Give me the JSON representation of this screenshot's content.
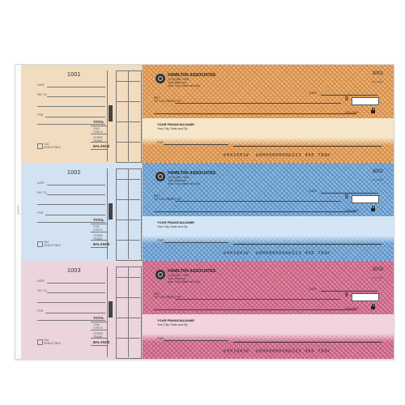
{
  "sheet": {
    "left_margin_code": "24H57"
  },
  "checks": [
    {
      "number": "1001",
      "colors": {
        "stub": "#f2dcbf",
        "pattern_a": "#eab27a",
        "pattern_b": "#d68c45",
        "band": "#f6e6c9"
      },
      "company": "HAMILTON ASSOCIATES",
      "company_lines": [
        "(123) 456-7890",
        "Your Address",
        "Your City, State and Zip"
      ],
      "fraction": "000-00000",
      "stub_labels": {
        "date": "DATE",
        "pay_to": "PAY TO",
        "for": "FOR",
        "total": "TOTAL",
        "this_check": "THIS CHECK",
        "other": "OTHER TRANS",
        "deductible": "TAX DEDUCTIBLE",
        "balance": "BALANCE"
      },
      "labels": {
        "date": "DATE",
        "pay": "PAY",
        "to_order": "TO THE ORDER OF",
        "dollars": "DOLLARS",
        "for": "FOR"
      },
      "bank_name": "YOUR FINANCIALNAME",
      "bank_city": "Your City, State and Zip",
      "micr": "⑈001001⑈  ⑆000000000⑆123 456 789⑈"
    },
    {
      "number": "1002",
      "colors": {
        "stub": "#d3e2f2",
        "pattern_a": "#8fb9de",
        "pattern_b": "#5e93c6",
        "band": "#d4e6f5"
      },
      "company": "HAMILTON ASSOCIATES",
      "company_lines": [
        "(123) 456-7890",
        "Your Address",
        "Your City, State and Zip"
      ],
      "fraction": "000-00000",
      "stub_labels": {
        "date": "DATE",
        "pay_to": "PAY TO",
        "for": "FOR",
        "total": "TOTAL",
        "this_check": "THIS CHECK",
        "other": "OTHER TRANS",
        "deductible": "TAX DEDUCTIBLE",
        "balance": "BALANCE"
      },
      "labels": {
        "date": "DATE",
        "pay": "PAY",
        "to_order": "TO THE ORDER OF",
        "dollars": "DOLLARS",
        "for": "FOR"
      },
      "bank_name": "YOUR FINANCIALNAME",
      "bank_city": "Your City, State and Zip",
      "micr": "⑈001002⑈  ⑆000000000⑆123 456 789⑈"
    },
    {
      "number": "1003",
      "colors": {
        "stub": "#ecd4de",
        "pattern_a": "#de8aa4",
        "pattern_b": "#c45e7f",
        "band": "#f2d4dd"
      },
      "company": "HAMILTON ASSOCIATES",
      "company_lines": [
        "(123) 456-7890",
        "Your Address",
        "Your City, State and Zip"
      ],
      "fraction": "000-00000",
      "stub_labels": {
        "date": "DATE",
        "pay_to": "PAY TO",
        "for": "FOR",
        "total": "TOTAL",
        "this_check": "THIS CHECK",
        "other": "OTHER TRANS",
        "deductible": "TAX DEDUCTIBLE",
        "balance": "BALANCE"
      },
      "labels": {
        "date": "DATE",
        "pay": "PAY",
        "to_order": "TO THE ORDER OF",
        "dollars": "DOLLARS",
        "for": "FOR"
      },
      "bank_name": "YOUR FINANCIALNAME",
      "bank_city": "Your City, State and Zip",
      "micr": "⑈001003⑈  ⑆000000000⑆123 456 789⑈"
    }
  ]
}
